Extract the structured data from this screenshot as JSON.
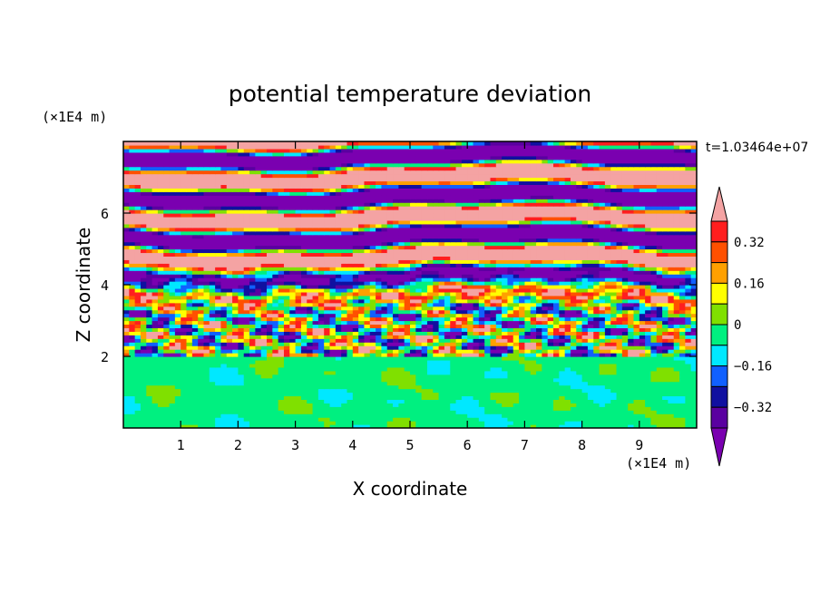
{
  "chart_data": {
    "type": "heatmap",
    "title": "potential temperature deviation",
    "xlabel": "X coordinate",
    "ylabel": "Z coordinate",
    "x_unit": "(×1E4 m)",
    "y_unit": "(×1E4 m)",
    "time_label": "t=1.03464e+07",
    "xlim": [
      0,
      10
    ],
    "ylim": [
      0,
      8
    ],
    "x_ticks": [
      1,
      2,
      3,
      4,
      5,
      6,
      7,
      8,
      9
    ],
    "y_ticks": [
      2,
      4,
      6
    ],
    "colorbar": {
      "ticks": [
        "0.32",
        "0.16",
        "0",
        "−0.16",
        "−0.32"
      ],
      "levels": [
        -0.48,
        -0.4,
        -0.32,
        -0.24,
        -0.16,
        -0.08,
        0,
        0.08,
        0.16,
        0.24,
        0.32,
        0.4,
        0.48
      ],
      "colors": [
        "#7a00b0",
        "#5a00a0",
        "#1010a0",
        "#1060ff",
        "#00e8ff",
        "#00f080",
        "#80e000",
        "#ffff00",
        "#ffa000",
        "#ff5000",
        "#ff1e1e",
        "#f4a3a3"
      ]
    },
    "regions": [
      {
        "z": [
          0,
          2
        ],
        "description_values": "near 0 to −0.08 (green) with patches of 0 to 0.08"
      },
      {
        "z": [
          2,
          4.5
        ],
        "description_values": "mixed, full range −0.48 to 0.48"
      },
      {
        "z": [
          4.5,
          8
        ],
        "description_values": "alternating layers of ≤−0.48 (purple) and ≥0.48 (pink)"
      }
    ]
  }
}
